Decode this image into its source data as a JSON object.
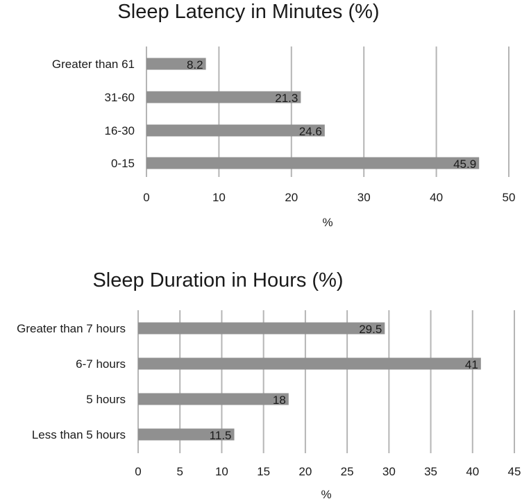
{
  "chart_data": [
    {
      "type": "bar",
      "orientation": "horizontal",
      "title": "Sleep Latency in Minutes (%)",
      "xlabel": "%",
      "ylabel": "",
      "categories": [
        "Greater than 61",
        "31-60",
        "16-30",
        "0-15"
      ],
      "values": [
        8.2,
        21.3,
        24.6,
        45.9
      ],
      "data_labels": [
        "8.2",
        "21.3",
        "24.6",
        "45.9"
      ],
      "xlim": [
        0,
        50
      ],
      "xticks": [
        "0",
        "10",
        "20",
        "30",
        "40",
        "50"
      ],
      "grid": "vertical",
      "legend": "none",
      "bar_color": "#909090"
    },
    {
      "type": "bar",
      "orientation": "horizontal",
      "title": "Sleep Duration in Hours (%)",
      "xlabel": "%",
      "ylabel": "",
      "categories": [
        "Greater than 7 hours",
        "6-7 hours",
        "5 hours",
        "Less than 5 hours"
      ],
      "values": [
        29.5,
        41,
        18,
        11.5
      ],
      "data_labels": [
        "29.5",
        "41",
        "18",
        "11.5"
      ],
      "xlim": [
        0,
        45
      ],
      "xticks": [
        "0",
        "5",
        "10",
        "15",
        "20",
        "25",
        "30",
        "35",
        "40",
        "45"
      ],
      "grid": "vertical",
      "legend": "none",
      "bar_color": "#909090"
    }
  ]
}
